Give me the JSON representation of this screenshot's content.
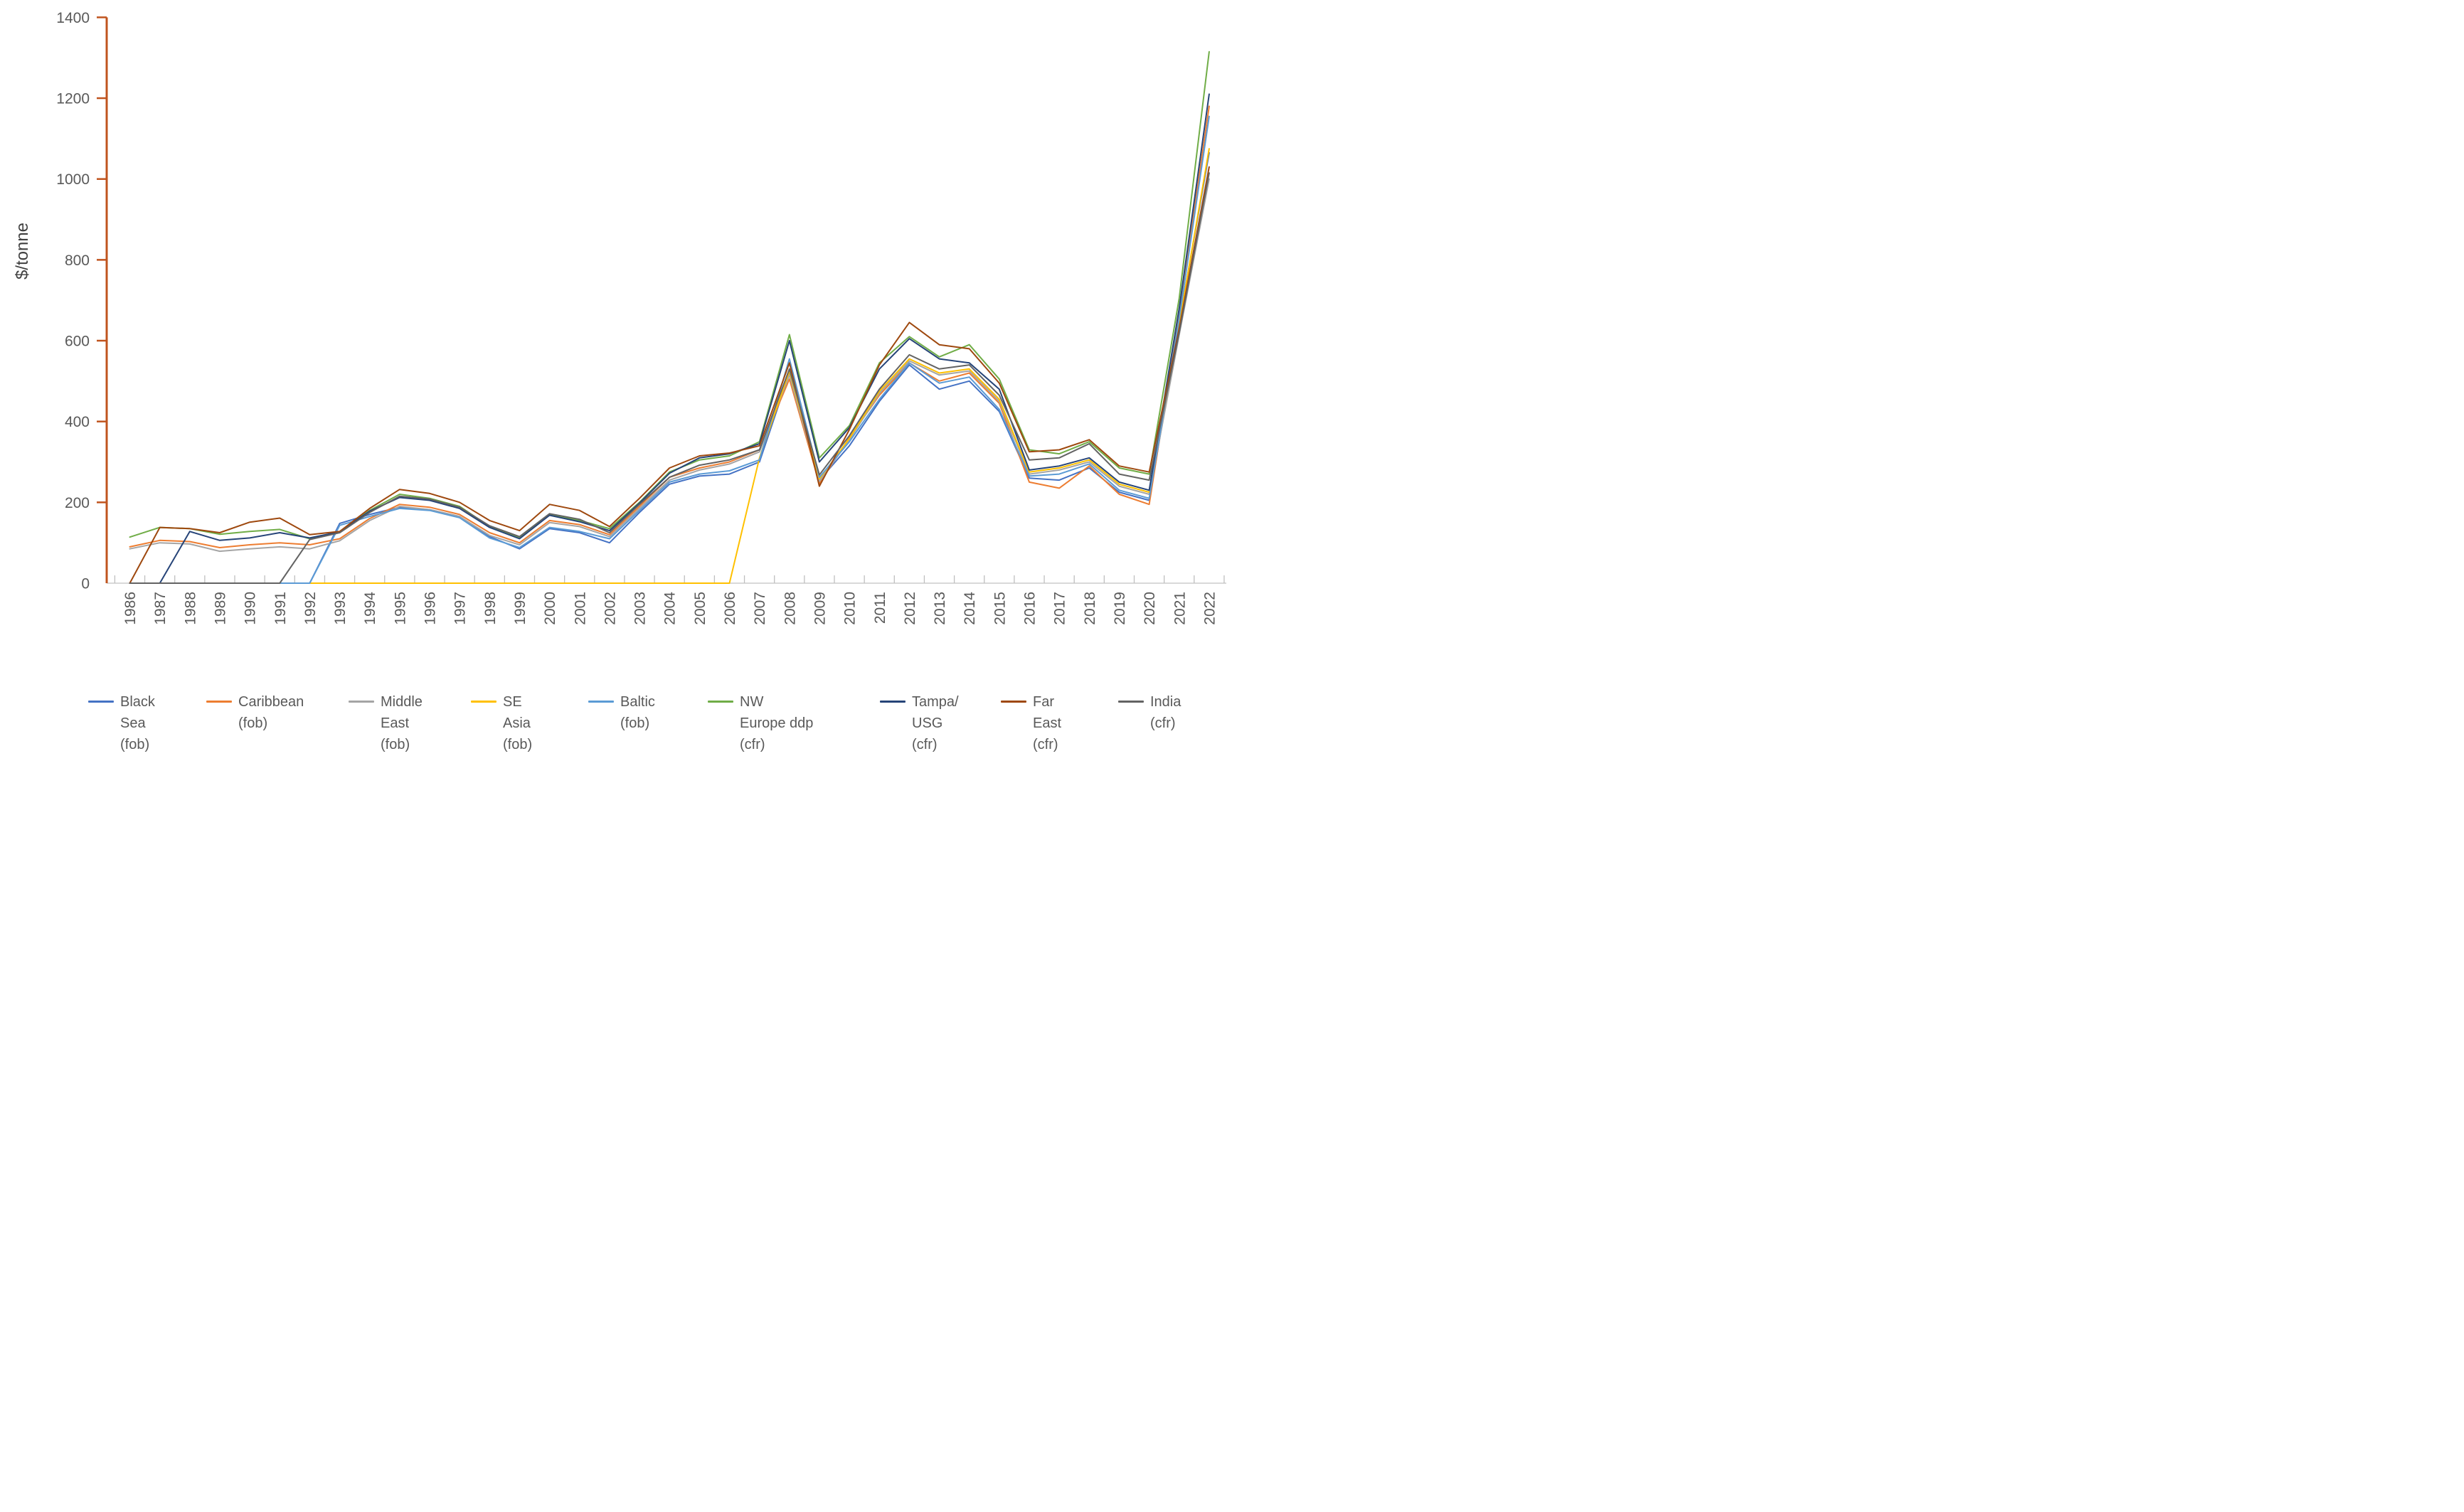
{
  "chart_data": {
    "type": "line",
    "title": "",
    "xlabel": "",
    "ylabel": "$/tonne",
    "ylim": [
      0,
      1400
    ],
    "ytick_step": 200,
    "grid": false,
    "legend_position": "bottom",
    "categories": [
      "1986",
      "1987",
      "1988",
      "1989",
      "1990",
      "1991",
      "1992",
      "1993",
      "1994",
      "1995",
      "1996",
      "1997",
      "1998",
      "1999",
      "2000",
      "2001",
      "2002",
      "2003",
      "2004",
      "2005",
      "2006",
      "2007",
      "2008",
      "2009",
      "2010",
      "2011",
      "2012",
      "2013",
      "2014",
      "2015",
      "2016",
      "2017",
      "2018",
      "2019",
      "2020",
      "2021",
      "2022"
    ],
    "series": [
      {
        "name": "Black Sea (fob)",
        "label_lines": [
          "Black",
          "Sea",
          "(fob)"
        ],
        "color": "#4472C4",
        "values": [
          0,
          0,
          0,
          0,
          0,
          0,
          0,
          148,
          170,
          188,
          182,
          165,
          115,
          85,
          135,
          125,
          100,
          175,
          245,
          265,
          270,
          300,
          520,
          255,
          340,
          450,
          540,
          480,
          500,
          425,
          260,
          255,
          285,
          225,
          205,
          645,
          1065
        ]
      },
      {
        "name": "Caribbean (fob)",
        "label_lines": [
          "Caribbean",
          "(fob)"
        ],
        "color": "#ED7D31",
        "values": [
          90,
          106,
          103,
          88,
          95,
          100,
          95,
          110,
          160,
          195,
          188,
          170,
          125,
          100,
          155,
          145,
          120,
          190,
          262,
          285,
          300,
          330,
          505,
          247,
          360,
          465,
          545,
          500,
          520,
          445,
          250,
          235,
          290,
          220,
          195,
          665,
          1180
        ]
      },
      {
        "name": "Middle East (fob)",
        "label_lines": [
          "Middle",
          "East",
          "(fob)"
        ],
        "color": "#A5A5A5",
        "values": [
          85,
          100,
          97,
          79,
          85,
          90,
          85,
          105,
          155,
          190,
          182,
          165,
          118,
          95,
          150,
          140,
          115,
          185,
          255,
          280,
          295,
          325,
          515,
          252,
          355,
          470,
          550,
          515,
          525,
          450,
          270,
          280,
          300,
          240,
          220,
          615,
          1000
        ]
      },
      {
        "name": "SE Asia (fob)",
        "label_lines": [
          "SE",
          "Asia",
          "(fob)"
        ],
        "color": "#FFC000",
        "values": [
          0,
          0,
          0,
          0,
          0,
          0,
          0,
          0,
          0,
          0,
          0,
          0,
          0,
          0,
          0,
          0,
          0,
          0,
          0,
          0,
          0,
          310,
          525,
          258,
          358,
          475,
          555,
          520,
          530,
          455,
          275,
          285,
          305,
          245,
          225,
          640,
          1075
        ]
      },
      {
        "name": "Baltic (fob)",
        "label_lines": [
          "Baltic",
          "(fob)"
        ],
        "color": "#5B9BD5",
        "values": [
          0,
          0,
          0,
          0,
          0,
          0,
          0,
          143,
          165,
          185,
          180,
          162,
          112,
          88,
          138,
          128,
          110,
          180,
          250,
          270,
          278,
          305,
          555,
          262,
          350,
          455,
          545,
          495,
          510,
          430,
          265,
          270,
          295,
          230,
          210,
          655,
          1155
        ]
      },
      {
        "name": "NW Europe ddp (cfr)",
        "label_lines": [
          "NW",
          "Europe ddp",
          "(cfr)"
        ],
        "color": "#70AD47",
        "values": [
          114,
          138,
          135,
          121,
          128,
          133,
          110,
          128,
          180,
          220,
          210,
          190,
          140,
          112,
          170,
          155,
          135,
          200,
          275,
          305,
          315,
          350,
          615,
          310,
          390,
          545,
          610,
          560,
          590,
          505,
          330,
          320,
          350,
          285,
          270,
          705,
          1315
        ]
      },
      {
        "name": "Tampa/USG (cfr)",
        "label_lines": [
          "Tampa/",
          "USG",
          "(cfr)"
        ],
        "color": "#264478",
        "values": [
          0,
          0,
          128,
          106,
          112,
          125,
          112,
          127,
          178,
          212,
          205,
          185,
          138,
          110,
          168,
          152,
          130,
          198,
          272,
          310,
          320,
          345,
          600,
          300,
          385,
          530,
          605,
          555,
          545,
          480,
          280,
          290,
          310,
          250,
          230,
          680,
          1210
        ]
      },
      {
        "name": "Far East (cfr)",
        "label_lines": [
          "Far",
          "East",
          "(cfr)"
        ],
        "color": "#9E480E",
        "values": [
          0,
          138,
          135,
          125,
          151,
          161,
          120,
          128,
          185,
          232,
          222,
          200,
          155,
          130,
          195,
          180,
          140,
          210,
          285,
          315,
          322,
          340,
          545,
          240,
          380,
          540,
          645,
          590,
          580,
          495,
          325,
          330,
          355,
          290,
          275,
          630,
          1030
        ]
      },
      {
        "name": "India (cfr)",
        "label_lines": [
          "India",
          "(cfr)"
        ],
        "color": "#636363",
        "values": [
          0,
          0,
          0,
          0,
          0,
          0,
          108,
          125,
          175,
          215,
          208,
          188,
          142,
          115,
          172,
          158,
          125,
          195,
          262,
          292,
          305,
          330,
          530,
          268,
          365,
          480,
          565,
          530,
          540,
          465,
          305,
          310,
          345,
          270,
          255,
          620,
          1015
        ]
      }
    ],
    "style": {
      "y_axis_color": "#C0541E",
      "x_axis_color": "#D9D9D9",
      "x_tick_color": "#BFBFBF",
      "text_color": "#595959"
    }
  }
}
